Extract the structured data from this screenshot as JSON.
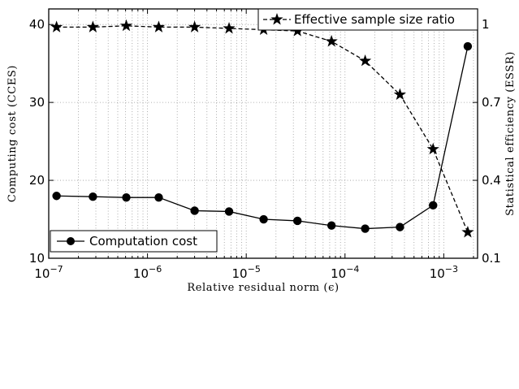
{
  "chart_data": {
    "type": "line",
    "xlabel": "Relative residual norm (ϵ)",
    "ylabel_left": "Computing cost (CCES)",
    "ylabel_right": "Statistical efficiency (ESSR)",
    "x_scale": "log",
    "xlim": [
      1e-07,
      0.0022
    ],
    "ylim_left": [
      10,
      42
    ],
    "ylim_right": [
      0.1,
      1.06
    ],
    "x_ticks": [
      {
        "value": 1e-07,
        "mant": "10",
        "exp": "−7"
      },
      {
        "value": 1e-06,
        "mant": "10",
        "exp": "−6"
      },
      {
        "value": 1e-05,
        "mant": "10",
        "exp": "−5"
      },
      {
        "value": 0.0001,
        "mant": "10",
        "exp": "−4"
      },
      {
        "value": 0.001,
        "mant": "10",
        "exp": "−3"
      }
    ],
    "y_ticks_left": [
      "10",
      "20",
      "30",
      "40"
    ],
    "y_ticks_right": [
      "0.1",
      "0.4",
      "0.7",
      "1"
    ],
    "grid": true,
    "series": [
      {
        "name": "Computation cost",
        "axis": "left",
        "line": "solid",
        "marker": "circle",
        "x": [
          1.2e-07,
          2.8e-07,
          6.1e-07,
          1.3e-06,
          3e-06,
          6.7e-06,
          1.5e-05,
          3.3e-05,
          7.3e-05,
          0.00016,
          0.00036,
          0.00078,
          0.00175
        ],
        "y": [
          18.0,
          17.9,
          17.8,
          17.8,
          16.1,
          16.0,
          15.0,
          14.8,
          14.2,
          13.8,
          14.0,
          16.8,
          37.2
        ]
      },
      {
        "name": "Effective sample size ratio",
        "axis": "right",
        "line": "dashed",
        "marker": "star",
        "x": [
          1.2e-07,
          2.8e-07,
          6.1e-07,
          1.3e-06,
          3e-06,
          6.7e-06,
          1.5e-05,
          3.3e-05,
          7.3e-05,
          0.00016,
          0.00036,
          0.00078,
          0.00175
        ],
        "y": [
          0.99,
          0.99,
          0.995,
          0.99,
          0.99,
          0.985,
          0.98,
          0.975,
          0.935,
          0.86,
          0.73,
          0.52,
          0.2
        ]
      }
    ],
    "legends": [
      {
        "label": "Effective sample size ratio",
        "placement": "top-right"
      },
      {
        "label": "Computation cost",
        "placement": "bottom-left"
      }
    ]
  }
}
